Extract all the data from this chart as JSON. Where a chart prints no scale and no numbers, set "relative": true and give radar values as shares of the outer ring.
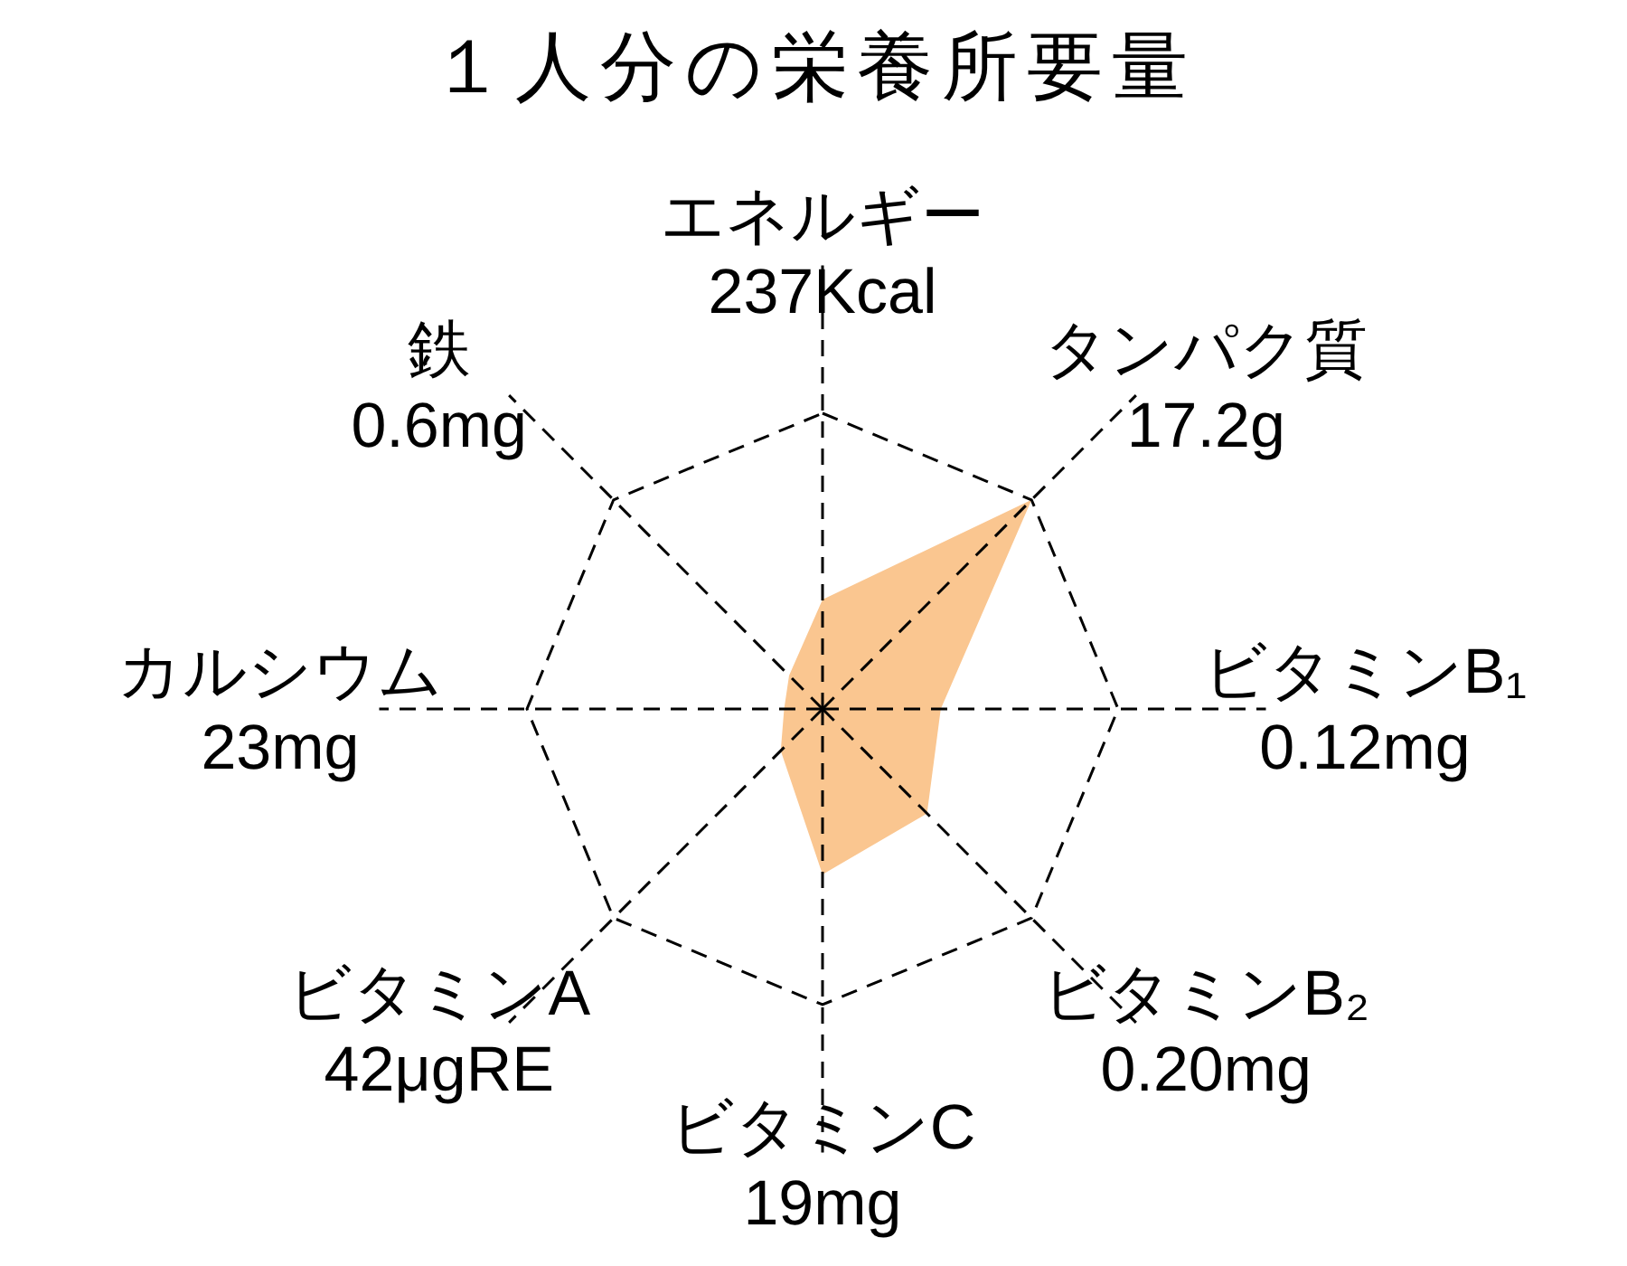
{
  "chart_data": {
    "type": "radar",
    "title": "１人分の栄養所要量",
    "categories": [
      "エネルギー\n237Kcal",
      "タンパク質\n17.2g",
      "ビタミンB₁\n0.12mg",
      "ビタミンB₂\n0.20mg",
      "ビタミンC\n19mg",
      "ビタミンA\n42μgRE",
      "カルシウム\n23mg",
      "鉄\n0.6mg"
    ],
    "relative": true,
    "grid": true,
    "series": [
      {
        "color": "#fac690",
        "values": [
          0.37,
          1.0,
          0.4,
          0.5,
          0.56,
          0.2,
          0.13,
          0.16
        ]
      }
    ]
  }
}
